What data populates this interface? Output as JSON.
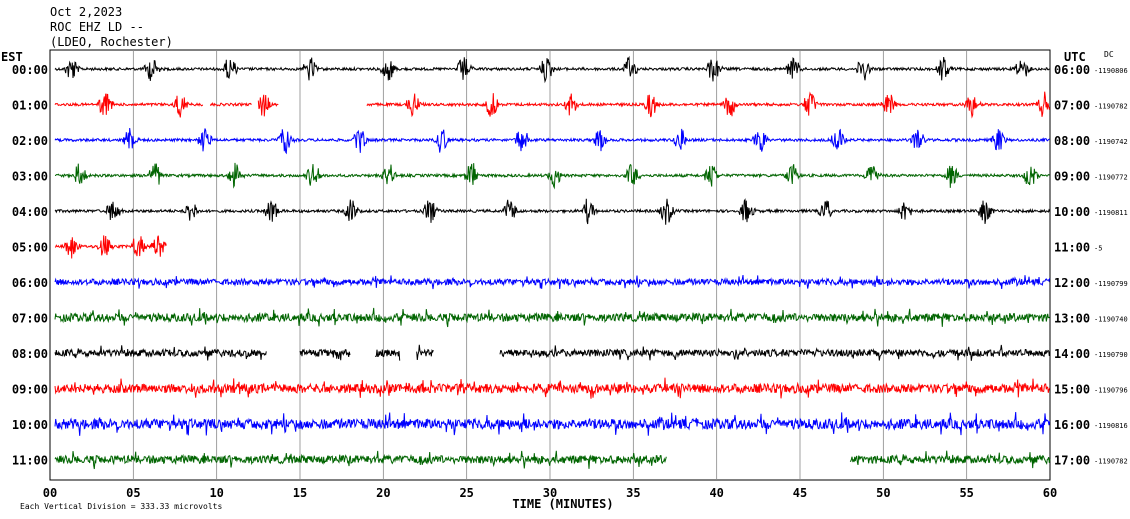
{
  "header": {
    "date": "Oct 2,2023",
    "station": "ROC EHZ LD --",
    "network": "(LDEO, Rochester)"
  },
  "left_axis_title": "EST",
  "right_axis_title": "UTC",
  "dc_title": "DC",
  "footer_note": "Each Vertical Division =  333.33 microvolts",
  "chart_data": {
    "type": "line",
    "title": "",
    "xlabel": "TIME (MINUTES)",
    "ylabel": "",
    "xlim": [
      0,
      60
    ],
    "x_ticks": [
      0,
      5,
      10,
      15,
      20,
      25,
      30,
      35,
      40,
      45,
      50,
      55,
      60
    ],
    "x_tick_labels": [
      "00",
      "05",
      "10",
      "15",
      "20",
      "25",
      "30",
      "35",
      "40",
      "45",
      "50",
      "55",
      "60"
    ],
    "grid": true,
    "vertical_division_microvolts": 333.33,
    "colors": {
      "black": "#000000",
      "red": "#ff0000",
      "blue": "#0000ff",
      "green": "#006400"
    },
    "traces": [
      {
        "est": "00:00",
        "utc": "06:00",
        "dc": "-1190806",
        "color": "black",
        "amp": 3,
        "noise": "quiet",
        "data_ranges": [
          [
            0.3,
            60
          ]
        ],
        "events": [
          1,
          5.8,
          10.5,
          15.3,
          20,
          24.5,
          29.5,
          34.5,
          39.5,
          44.3,
          48.5,
          53.3,
          58
        ]
      },
      {
        "est": "01:00",
        "utc": "07:00",
        "dc": "-1190782",
        "color": "red",
        "amp": 3,
        "noise": "quiet",
        "data_ranges": [
          [
            0.3,
            9.2
          ],
          [
            9.6,
            12.1
          ],
          [
            12.5,
            13.7
          ],
          [
            19,
            60
          ]
        ],
        "events": [
          3,
          7.5,
          12.5,
          21.5,
          26.2,
          31,
          35.8,
          40.5,
          45.3,
          50,
          55,
          59.3
        ]
      },
      {
        "est": "02:00",
        "utc": "08:00",
        "dc": "-1190742",
        "color": "blue",
        "amp": 3,
        "noise": "quiet",
        "data_ranges": [
          [
            0.3,
            60
          ]
        ],
        "events": [
          4.5,
          9,
          13.8,
          18.3,
          23.2,
          28,
          32.7,
          37.5,
          42.3,
          47,
          51.8,
          56.6
        ]
      },
      {
        "est": "03:00",
        "utc": "09:00",
        "dc": "-1190772",
        "color": "green",
        "amp": 3,
        "noise": "quiet",
        "data_ranges": [
          [
            0.3,
            60
          ]
        ],
        "events": [
          1.5,
          6,
          10.8,
          15.5,
          20,
          25,
          30,
          34.6,
          39.4,
          44.2,
          49,
          53.8,
          58.5
        ]
      },
      {
        "est": "04:00",
        "utc": "10:00",
        "dc": "-1190811",
        "color": "black",
        "amp": 3,
        "noise": "quiet",
        "data_ranges": [
          [
            0.3,
            60
          ]
        ],
        "events": [
          3.5,
          8.2,
          13,
          17.8,
          22.5,
          27.3,
          32,
          36.7,
          41.5,
          46.2,
          51,
          55.8
        ]
      },
      {
        "est": "05:00",
        "utc": "11:00",
        "dc": "-5",
        "color": "red",
        "amp": 3,
        "noise": "quiet",
        "data_ranges": [
          [
            0.3,
            7
          ]
        ],
        "events": [
          1,
          3,
          5,
          6.2
        ]
      },
      {
        "est": "06:00",
        "utc": "12:00",
        "dc": "-1190799",
        "color": "blue",
        "amp": 6,
        "noise": "noisy",
        "data_ranges": [
          [
            0.3,
            60
          ]
        ],
        "events": []
      },
      {
        "est": "07:00",
        "utc": "13:00",
        "dc": "-1190740",
        "color": "green",
        "amp": 8,
        "noise": "noisy",
        "data_ranges": [
          [
            0.3,
            60
          ]
        ],
        "events": []
      },
      {
        "est": "08:00",
        "utc": "14:00",
        "dc": "-1190790",
        "color": "black",
        "amp": 7,
        "noise": "noisy",
        "data_ranges": [
          [
            0.3,
            13
          ],
          [
            15,
            18
          ],
          [
            19.5,
            21
          ],
          [
            22,
            23
          ],
          [
            27,
            60
          ]
        ],
        "events": []
      },
      {
        "est": "09:00",
        "utc": "15:00",
        "dc": "-1190796",
        "color": "red",
        "amp": 9,
        "noise": "noisy",
        "data_ranges": [
          [
            0.3,
            60
          ]
        ],
        "events": []
      },
      {
        "est": "10:00",
        "utc": "16:00",
        "dc": "-1190816",
        "color": "blue",
        "amp": 10,
        "noise": "noisy",
        "data_ranges": [
          [
            0.3,
            60
          ]
        ],
        "events": []
      },
      {
        "est": "11:00",
        "utc": "17:00",
        "dc": "-1190782",
        "color": "green",
        "amp": 8,
        "noise": "noisy",
        "data_ranges": [
          [
            0.3,
            37
          ],
          [
            48,
            60
          ]
        ],
        "events": []
      }
    ]
  }
}
